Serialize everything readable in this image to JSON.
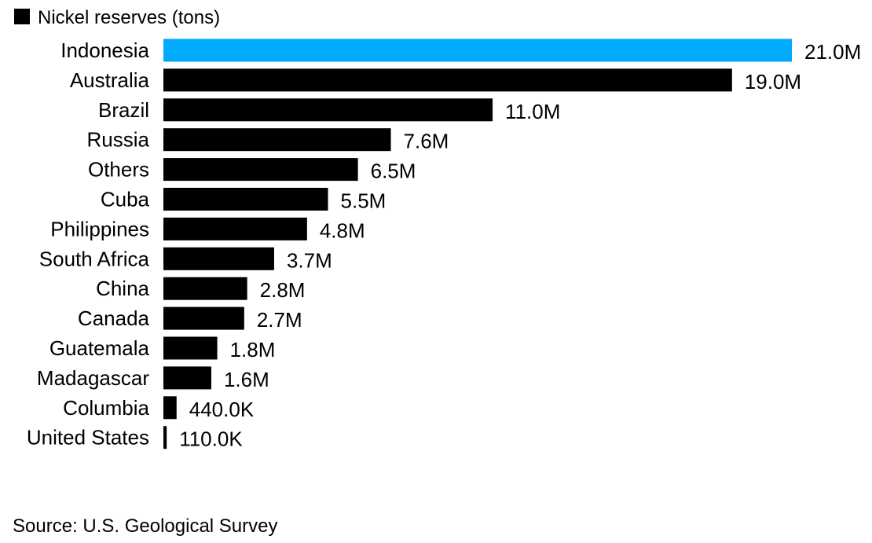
{
  "chart_data": {
    "type": "bar",
    "orientation": "horizontal",
    "legend": {
      "label": "Nickel reserves (tons)",
      "swatch_color": "#000000",
      "placement": "top-left"
    },
    "categories": [
      "Indonesia",
      "Australia",
      "Brazil",
      "Russia",
      "Others",
      "Cuba",
      "Philippines",
      "South Africa",
      "China",
      "Canada",
      "Guatemala",
      "Madagascar",
      "Columbia",
      "United States"
    ],
    "values": [
      21000000,
      19000000,
      11000000,
      7600000,
      6500000,
      5500000,
      4800000,
      3700000,
      2800000,
      2700000,
      1800000,
      1600000,
      440000,
      110000
    ],
    "value_labels": [
      "21.0M",
      "19.0M",
      "11.0M",
      "7.6M",
      "6.5M",
      "5.5M",
      "4.8M",
      "3.7M",
      "2.8M",
      "2.7M",
      "1.8M",
      "1.6M",
      "440.0K",
      "110.0K"
    ],
    "bar_color": "#000000",
    "highlight_category": "Indonesia",
    "highlight_color": "#00aaff",
    "grid": false
  },
  "source": "Source: U.S. Geological Survey"
}
